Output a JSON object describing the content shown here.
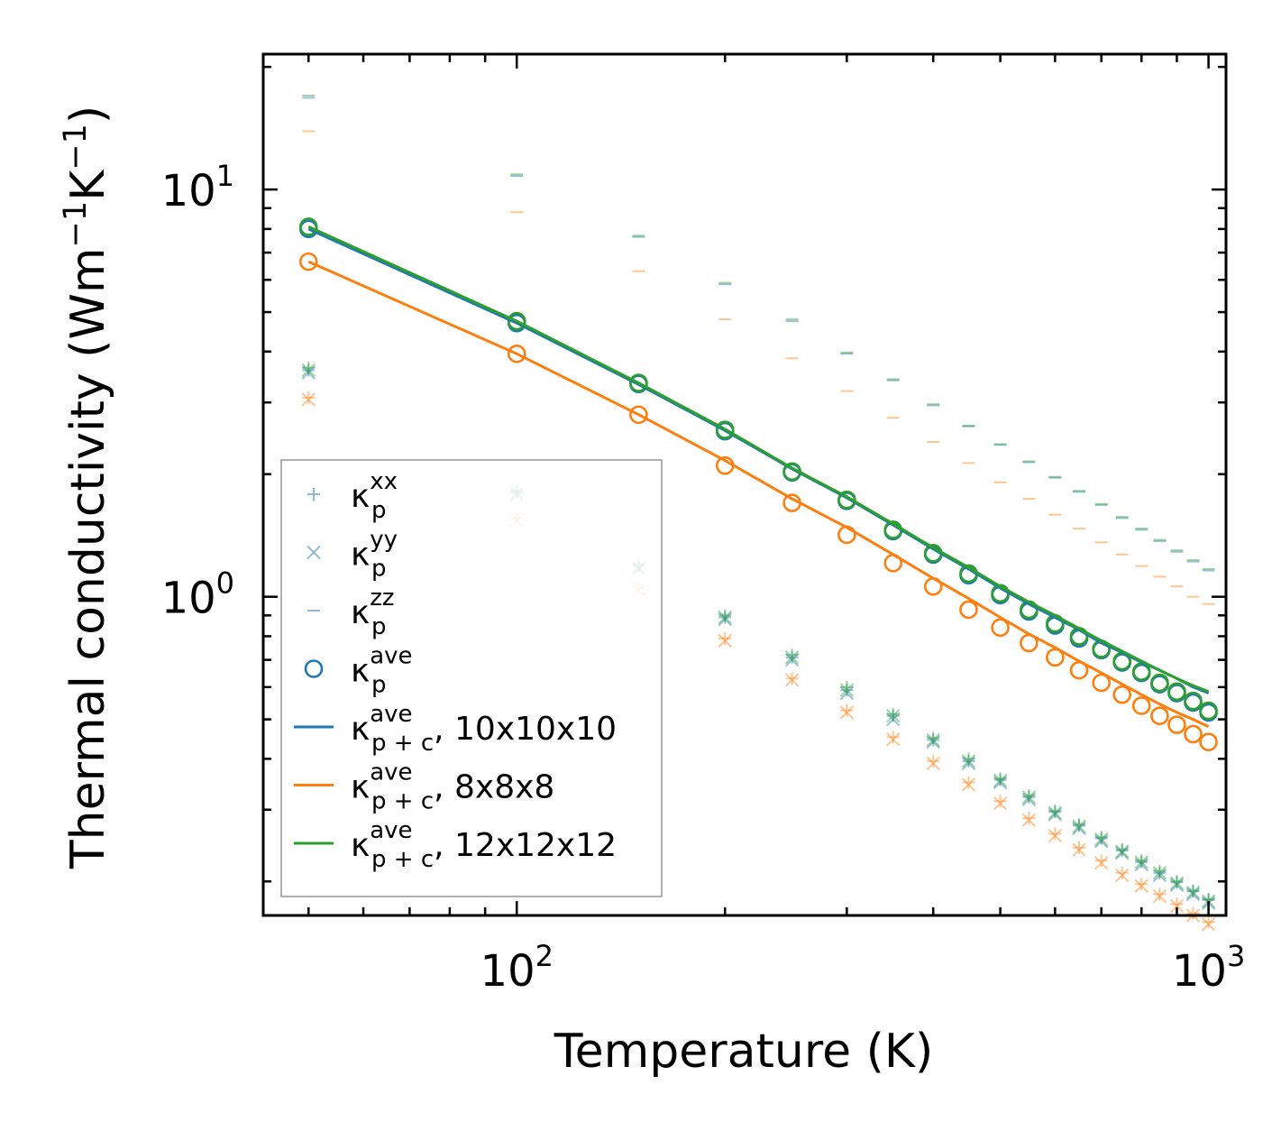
{
  "chart_data": {
    "type": "scatter",
    "title": "",
    "xlabel": "Temperature (K)",
    "ylabel": {
      "main": "Thermal conductivity (Wm",
      "sup1": "−1",
      "mid": "K",
      "sup2": "−1",
      "end": ")"
    },
    "xscale": "log",
    "yscale": "log",
    "xlim": [
      43,
      1060
    ],
    "ylim": [
      0.165,
      21.5
    ],
    "x_ticks": [
      {
        "base": "10",
        "exp": "2",
        "value": 100
      },
      {
        "base": "10",
        "exp": "3",
        "value": 1000
      }
    ],
    "y_ticks": [
      {
        "base": "10",
        "exp": "0",
        "value": 1
      },
      {
        "base": "10",
        "exp": "1",
        "value": 10
      }
    ],
    "x": [
      50,
      100,
      150,
      200,
      250,
      300,
      350,
      400,
      450,
      500,
      550,
      600,
      650,
      700,
      750,
      800,
      850,
      900,
      950,
      1000
    ],
    "series": [
      {
        "name": "κ_p^xx, 10x10x10",
        "marker": "plus",
        "color": "#1f77b4",
        "values": [
          3.6,
          1.8,
          1.19,
          0.89,
          0.71,
          0.59,
          0.51,
          0.445,
          0.395,
          0.355,
          0.322,
          0.296,
          0.274,
          0.255,
          0.238,
          0.223,
          0.21,
          0.199,
          0.189,
          0.18
        ]
      },
      {
        "name": "κ_p^yy, 10x10x10",
        "marker": "x",
        "color": "#1f77b4",
        "values": [
          3.55,
          1.78,
          1.17,
          0.88,
          0.7,
          0.58,
          0.5,
          0.44,
          0.39,
          0.35,
          0.318,
          0.292,
          0.27,
          0.251,
          0.235,
          0.22,
          0.207,
          0.196,
          0.186,
          0.177
        ]
      },
      {
        "name": "κ_p^zz, 10x10x10",
        "marker": "hline",
        "color": "#1f77b4",
        "values": [
          16.8,
          10.8,
          7.65,
          5.85,
          4.75,
          3.95,
          3.4,
          2.95,
          2.62,
          2.36,
          2.14,
          1.96,
          1.81,
          1.68,
          1.56,
          1.46,
          1.37,
          1.29,
          1.22,
          1.16
        ]
      },
      {
        "name": "κ_p^xx, 8x8x8",
        "marker": "plus",
        "color": "#ff7f0e",
        "values": [
          3.08,
          1.56,
          1.05,
          0.79,
          0.63,
          0.526,
          0.452,
          0.395,
          0.35,
          0.315,
          0.286,
          0.262,
          0.242,
          0.225,
          0.21,
          0.197,
          0.186,
          0.176,
          0.167,
          0.159
        ]
      },
      {
        "name": "κ_p^yy, 8x8x8",
        "marker": "x",
        "color": "#ff7f0e",
        "values": [
          3.05,
          1.54,
          1.04,
          0.78,
          0.625,
          0.52,
          0.447,
          0.39,
          0.346,
          0.311,
          0.283,
          0.259,
          0.239,
          0.222,
          0.207,
          0.195,
          0.184,
          0.174,
          0.165,
          0.157
        ]
      },
      {
        "name": "κ_p^zz, 8x8x8",
        "marker": "hline",
        "color": "#ff7f0e",
        "values": [
          13.9,
          8.8,
          6.3,
          4.8,
          3.85,
          3.2,
          2.75,
          2.4,
          2.13,
          1.91,
          1.74,
          1.59,
          1.47,
          1.36,
          1.27,
          1.19,
          1.12,
          1.06,
          1.0,
          0.96
        ]
      },
      {
        "name": "κ_p^xx, 12x12x12",
        "marker": "plus",
        "color": "#2ca02c",
        "values": [
          3.65,
          1.82,
          1.2,
          0.9,
          0.72,
          0.6,
          0.515,
          0.45,
          0.4,
          0.358,
          0.325,
          0.298,
          0.276,
          0.257,
          0.24,
          0.225,
          0.212,
          0.2,
          0.19,
          0.181
        ]
      },
      {
        "name": "κ_p^yy, 12x12x12",
        "marker": "x",
        "color": "#2ca02c",
        "values": [
          3.6,
          1.8,
          1.18,
          0.89,
          0.71,
          0.59,
          0.51,
          0.445,
          0.395,
          0.354,
          0.322,
          0.295,
          0.273,
          0.254,
          0.237,
          0.223,
          0.21,
          0.198,
          0.188,
          0.179
        ]
      },
      {
        "name": "κ_p^zz, 12x12x12",
        "marker": "hline",
        "color": "#2ca02c",
        "values": [
          17.0,
          10.9,
          7.7,
          5.9,
          4.8,
          3.98,
          3.42,
          2.97,
          2.63,
          2.37,
          2.15,
          1.97,
          1.82,
          1.69,
          1.57,
          1.47,
          1.38,
          1.3,
          1.23,
          1.17
        ]
      },
      {
        "name": "κ_p^ave, 10x10x10",
        "marker": "circle",
        "color": "#1f77b4",
        "values": [
          8.0,
          4.7,
          3.33,
          2.55,
          2.02,
          1.72,
          1.45,
          1.27,
          1.13,
          1.01,
          0.92,
          0.85,
          0.79,
          0.74,
          0.69,
          0.65,
          0.61,
          0.58,
          0.55,
          0.52
        ]
      },
      {
        "name": "κ_p^ave, 8x8x8",
        "marker": "circle",
        "color": "#ff7f0e",
        "values": [
          6.65,
          3.95,
          2.8,
          2.1,
          1.7,
          1.42,
          1.21,
          1.06,
          0.93,
          0.84,
          0.77,
          0.71,
          0.66,
          0.615,
          0.575,
          0.54,
          0.51,
          0.485,
          0.46,
          0.44
        ]
      },
      {
        "name": "κ_p^ave, 12x12x12",
        "marker": "circle",
        "color": "#2ca02c",
        "values": [
          8.1,
          4.75,
          3.35,
          2.57,
          2.03,
          1.73,
          1.46,
          1.28,
          1.14,
          1.02,
          0.93,
          0.86,
          0.8,
          0.745,
          0.695,
          0.655,
          0.615,
          0.585,
          0.555,
          0.525
        ]
      },
      {
        "name": "κ_p+c^ave, 10x10x10",
        "marker": "line",
        "color": "#1f77b4",
        "values": [
          8.0,
          4.7,
          3.32,
          2.56,
          2.06,
          1.75,
          1.5,
          1.31,
          1.17,
          1.05,
          0.96,
          0.89,
          0.83,
          0.77,
          0.73,
          0.69,
          0.66,
          0.63,
          0.6,
          0.58
        ]
      },
      {
        "name": "κ_p+c^ave, 8x8x8",
        "marker": "line",
        "color": "#ff7f0e",
        "values": [
          6.65,
          3.95,
          2.8,
          2.16,
          1.74,
          1.48,
          1.27,
          1.11,
          0.99,
          0.89,
          0.81,
          0.75,
          0.695,
          0.65,
          0.61,
          0.575,
          0.545,
          0.52,
          0.5,
          0.48
        ]
      },
      {
        "name": "κ_p+c^ave, 12x12x12",
        "marker": "line",
        "color": "#2ca02c",
        "values": [
          8.1,
          4.75,
          3.35,
          2.58,
          2.07,
          1.76,
          1.51,
          1.32,
          1.18,
          1.06,
          0.97,
          0.9,
          0.835,
          0.78,
          0.735,
          0.695,
          0.66,
          0.63,
          0.605,
          0.585
        ]
      }
    ],
    "legend": {
      "placement": "lower-left",
      "entries": [
        {
          "sym": "κ",
          "sup": "xx",
          "sub": "p",
          "suffix": "",
          "marker": "plus",
          "color": "#1f77b4"
        },
        {
          "sym": "κ",
          "sup": "yy",
          "sub": "p",
          "suffix": "",
          "marker": "x",
          "color": "#1f77b4"
        },
        {
          "sym": "κ",
          "sup": "zz",
          "sub": "p",
          "suffix": "",
          "marker": "hline",
          "color": "#1f77b4"
        },
        {
          "sym": "κ",
          "sup": "ave",
          "sub": "p",
          "suffix": "",
          "marker": "circle",
          "color": "#1f77b4"
        },
        {
          "sym": "κ",
          "sup": "ave",
          "sub": "p + c",
          "suffix": ", 10x10x10",
          "marker": "line",
          "color": "#1f77b4"
        },
        {
          "sym": "κ",
          "sup": "ave",
          "sub": "p + c",
          "suffix": ", 8x8x8",
          "marker": "line",
          "color": "#ff7f0e"
        },
        {
          "sym": "κ",
          "sup": "ave",
          "sub": "p + c",
          "suffix": ", 12x12x12",
          "marker": "line",
          "color": "#2ca02c"
        }
      ]
    },
    "grid": false
  }
}
